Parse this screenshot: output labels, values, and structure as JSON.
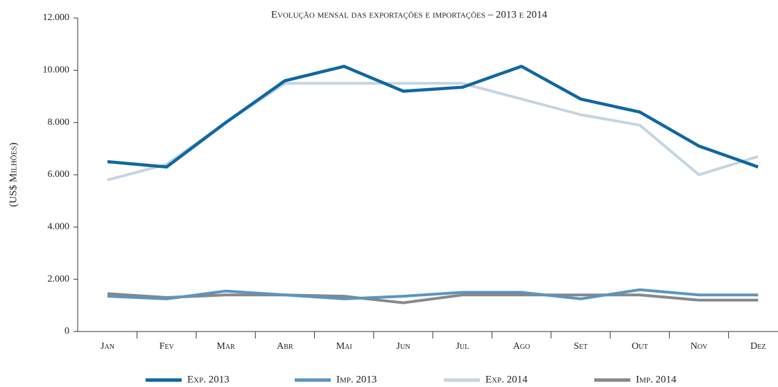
{
  "chart_data": {
    "type": "line",
    "title": "Evolução mensal das exportações e importações – 2013 e 2014",
    "y_label": "(US$ Milhões)",
    "categories": [
      "Jan",
      "Fev",
      "Mar",
      "Abr",
      "Mai",
      "Jun",
      "Jul",
      "Ago",
      "Set",
      "Out",
      "Nov",
      "Dez"
    ],
    "series": [
      {
        "name": "Exp. 2013",
        "color": "#0f67a0",
        "values": [
          6500,
          6300,
          8000,
          9600,
          10150,
          9200,
          9350,
          10150,
          8900,
          8400,
          7100,
          6300
        ]
      },
      {
        "name": "Imp. 2013",
        "color": "#5b95c0",
        "values": [
          1350,
          1250,
          1550,
          1400,
          1250,
          1350,
          1500,
          1500,
          1250,
          1600,
          1400,
          1400
        ]
      },
      {
        "name": "Exp. 2014",
        "color": "#c5d5e2",
        "values": [
          5800,
          6400,
          8000,
          9500,
          9500,
          9500,
          9500,
          8900,
          8300,
          7900,
          6000,
          6700
        ]
      },
      {
        "name": "Imp. 2014",
        "color": "#888888",
        "values": [
          1450,
          1300,
          1400,
          1400,
          1350,
          1100,
          1400,
          1400,
          1400,
          1400,
          1200,
          1200
        ]
      }
    ],
    "ylim": [
      0,
      12000
    ],
    "yticks": [
      0,
      {
        "value": 2000,
        "label": "2.000"
      },
      {
        "value": 4000,
        "label": "4.000"
      },
      {
        "value": 6000,
        "label": "6.000"
      },
      {
        "value": 8000,
        "label": "8.000"
      },
      {
        "value": 10000,
        "label": "10.000"
      },
      {
        "value": 12000,
        "label": "12.000"
      }
    ],
    "grid": false,
    "legend": "bottom"
  }
}
